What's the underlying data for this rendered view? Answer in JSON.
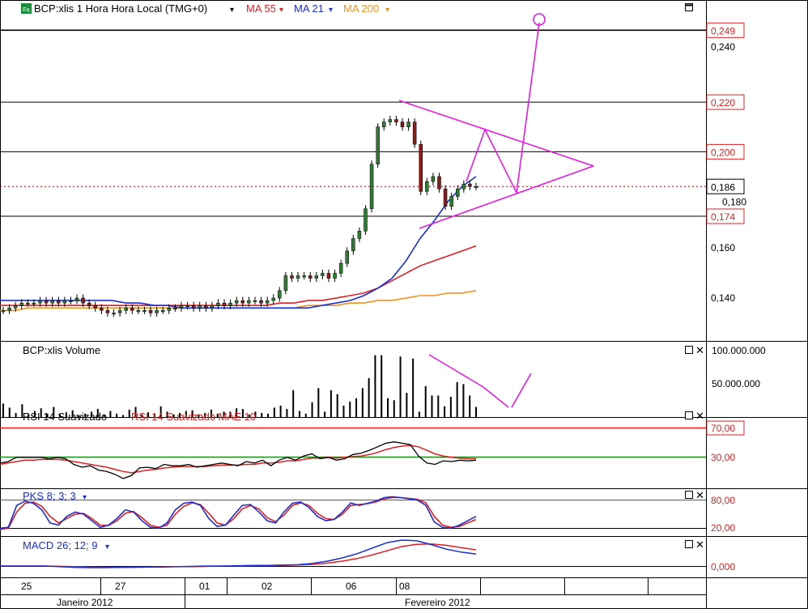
{
  "header": {
    "icon_label": "Eq",
    "symbol_title": "BCP:xlis 1 Hora Hora Local (TMG+0)",
    "ma55_label": "MA 55",
    "ma21_label": "MA 21",
    "ma200_label": "MA 200"
  },
  "panels": {
    "volume_title": "BCP:xlis Volume",
    "rsi_title": "RSI 14 Suavizado",
    "rsi_ma_title": "RSI 14 Suavizado MAE 10",
    "pks_title": "PKS 8; 3; 3",
    "macd_title": "MACD 26; 12; 9"
  },
  "x_axis": {
    "day_labels": [
      "25",
      "27",
      "01",
      "02",
      "06",
      "08"
    ],
    "month_labels": [
      "Janeiro 2012",
      "Fevereiro 2012"
    ]
  },
  "colors": {
    "candle_up": "#2e7d32",
    "candle_down": "#8b1a1a",
    "ma21": "#1a2fd6",
    "ma55": "#e02020",
    "ma200": "#f0921e",
    "drawing": "#e61be6",
    "rsi": "#000000",
    "rsi_ma": "#e02020",
    "overbought_line": "#e02020",
    "oversold_line": "#1a8a1a",
    "pk_k": "#1a2fd6",
    "pk_d": "#e02020",
    "value_box_red": "#e02020"
  },
  "chart_data": [
    {
      "type": "candlestick",
      "title": "BCP:xlis 1 Hora Hora Local (TMG+0)",
      "ylim": [
        0.126,
        0.254
      ],
      "y_ticks": [
        "0,240",
        "0,160",
        "0,140"
      ],
      "price_levels": [
        {
          "value": 0.249,
          "label": "0,249"
        },
        {
          "value": 0.22,
          "label": "0,220"
        },
        {
          "value": 0.2,
          "label": "0,200"
        },
        {
          "value": 0.174,
          "label": "0,174"
        }
      ],
      "last_price": {
        "value": 0.186,
        "label": "0,186"
      },
      "inline_tick": {
        "value": 0.18,
        "label": "0,180"
      },
      "close": [
        0.136,
        0.137,
        0.138,
        0.139,
        0.139,
        0.139,
        0.14,
        0.139,
        0.14,
        0.139,
        0.14,
        0.14,
        0.141,
        0.139,
        0.138,
        0.137,
        0.136,
        0.135,
        0.135,
        0.136,
        0.137,
        0.136,
        0.136,
        0.136,
        0.135,
        0.136,
        0.136,
        0.137,
        0.137,
        0.138,
        0.138,
        0.137,
        0.138,
        0.137,
        0.138,
        0.139,
        0.138,
        0.139,
        0.14,
        0.139,
        0.14,
        0.14,
        0.139,
        0.14,
        0.141,
        0.144,
        0.15,
        0.149,
        0.15,
        0.15,
        0.149,
        0.15,
        0.151,
        0.149,
        0.151,
        0.155,
        0.16,
        0.165,
        0.168,
        0.177,
        0.195,
        0.21,
        0.212,
        0.213,
        0.212,
        0.21,
        0.212,
        0.203,
        0.184,
        0.188,
        0.19,
        0.185,
        0.178,
        0.182,
        0.185,
        0.187,
        0.186,
        0.186
      ],
      "ma21": [
        0.14,
        0.14,
        0.14,
        0.14,
        0.14,
        0.14,
        0.14,
        0.14,
        0.14,
        0.139,
        0.139,
        0.138,
        0.138,
        0.137,
        0.137,
        0.137,
        0.137,
        0.137,
        0.137,
        0.137,
        0.137,
        0.137,
        0.137,
        0.138,
        0.139,
        0.14,
        0.142,
        0.145,
        0.149,
        0.156,
        0.165,
        0.172,
        0.18,
        0.186,
        0.19
      ],
      "ma55": [
        0.138,
        0.138,
        0.138,
        0.138,
        0.138,
        0.138,
        0.138,
        0.138,
        0.138,
        0.138,
        0.138,
        0.138,
        0.138,
        0.138,
        0.138,
        0.138,
        0.138,
        0.138,
        0.138,
        0.138,
        0.139,
        0.139,
        0.14,
        0.14,
        0.141,
        0.142,
        0.143,
        0.145,
        0.148,
        0.151,
        0.154,
        0.156,
        0.158,
        0.16,
        0.162
      ],
      "ma200": [
        0.136,
        0.136,
        0.137,
        0.137,
        0.137,
        0.137,
        0.137,
        0.137,
        0.137,
        0.137,
        0.137,
        0.137,
        0.137,
        0.137,
        0.137,
        0.137,
        0.137,
        0.137,
        0.137,
        0.137,
        0.137,
        0.137,
        0.138,
        0.138,
        0.138,
        0.139,
        0.139,
        0.14,
        0.14,
        0.141,
        0.142,
        0.142,
        0.143,
        0.143,
        0.144
      ]
    },
    {
      "type": "bar",
      "title": "BCP:xlis Volume",
      "ylim": [
        0,
        100000000
      ],
      "y_ticks": [
        "100.000.000",
        "50.000.000"
      ],
      "values": [
        20000000,
        14000000,
        6000000,
        19000000,
        4000000,
        9000000,
        13000000,
        5000000,
        15000000,
        4000000,
        7000000,
        10000000,
        3000000,
        5000000,
        8000000,
        12000000,
        4000000,
        9000000,
        5000000,
        3000000,
        11000000,
        15000000,
        4000000,
        7000000,
        5000000,
        16000000,
        8000000,
        4000000,
        6000000,
        9000000,
        10000000,
        4000000,
        6000000,
        11000000,
        5000000,
        8000000,
        8000000,
        13000000,
        12000000,
        4000000,
        8000000,
        6000000,
        5000000,
        14000000,
        17000000,
        12000000,
        40000000,
        9000000,
        5000000,
        22000000,
        43000000,
        8000000,
        40000000,
        34000000,
        17000000,
        23000000,
        28000000,
        43000000,
        58000000,
        92000000,
        92000000,
        28000000,
        25000000,
        90000000,
        36000000,
        87000000,
        8000000,
        46000000,
        32000000,
        32000000,
        16000000,
        30000000,
        52000000,
        49000000,
        32000000,
        15000000
      ],
      "trend_line": [
        88000000,
        52000000
      ],
      "projection_down": [
        0,
        3000000
      ],
      "projection_up": [
        3000000,
        62000000
      ]
    },
    {
      "type": "line",
      "title": "RSI 14 Suavizado",
      "ylim": [
        0,
        100
      ],
      "y_ticks": [
        "70,00",
        "30,00"
      ],
      "levels": [
        70,
        30
      ],
      "series": [
        {
          "name": "RSI 14 Suavizado",
          "values": [
            52,
            54,
            60,
            60,
            60,
            60,
            58,
            60,
            58,
            50,
            46,
            48,
            42,
            40,
            36,
            30,
            34,
            45,
            46,
            44,
            50,
            48,
            48,
            50,
            46,
            48,
            50,
            52,
            50,
            48,
            54,
            52,
            56,
            48,
            56,
            60,
            56,
            62,
            65,
            58,
            60,
            56,
            58,
            64,
            66,
            70,
            75,
            80,
            82,
            80,
            78,
            62,
            52,
            50,
            55,
            54,
            56,
            55,
            56
          ]
        },
        {
          "name": "RSI 14 Suavizado MAE 10",
          "values": [
            50,
            52,
            54,
            56,
            56,
            57,
            57,
            57,
            56,
            54,
            52,
            50,
            48,
            46,
            43,
            40,
            38,
            40,
            42,
            43,
            45,
            46,
            47,
            47,
            47,
            47,
            48,
            49,
            49,
            49,
            50,
            50,
            52,
            52,
            53,
            55,
            55,
            57,
            59,
            59,
            60,
            59,
            60,
            61,
            62,
            64,
            67,
            71,
            74,
            76,
            77,
            75,
            70,
            65,
            62,
            60,
            59,
            58,
            58
          ]
        }
      ]
    },
    {
      "type": "line",
      "title": "PKS 8; 3; 3",
      "ylim": [
        0,
        100
      ],
      "y_ticks": [
        "80,00",
        "20,00"
      ],
      "levels": [
        80,
        20
      ],
      "series": [
        {
          "name": "%K",
          "values": [
            18,
            20,
            70,
            80,
            75,
            60,
            30,
            25,
            45,
            55,
            50,
            35,
            20,
            25,
            40,
            60,
            55,
            35,
            20,
            18,
            30,
            60,
            75,
            78,
            70,
            40,
            22,
            25,
            48,
            70,
            72,
            55,
            35,
            30,
            55,
            75,
            78,
            65,
            45,
            35,
            38,
            55,
            76,
            70,
            75,
            80,
            88,
            90,
            88,
            85,
            82,
            70,
            32,
            20,
            18,
            25,
            35,
            45
          ]
        },
        {
          "name": "%D",
          "values": [
            15,
            18,
            55,
            75,
            78,
            68,
            45,
            30,
            40,
            50,
            52,
            40,
            25,
            24,
            35,
            52,
            56,
            42,
            25,
            20,
            25,
            50,
            68,
            76,
            72,
            52,
            30,
            25,
            40,
            62,
            70,
            62,
            42,
            33,
            48,
            70,
            76,
            70,
            52,
            40,
            38,
            50,
            70,
            72,
            74,
            78,
            85,
            88,
            88,
            86,
            84,
            76,
            45,
            25,
            20,
            22,
            30,
            38
          ]
        }
      ]
    },
    {
      "type": "line",
      "title": "MACD 26; 12; 9",
      "y_ticks": [
        "0,000"
      ],
      "series": [
        {
          "name": "MACD",
          "values": [
            0.0,
            0.0,
            0.0,
            0.0,
            -0.0002,
            -0.0004,
            -0.0005,
            -0.0005,
            -0.0004,
            -0.0003,
            -0.0003,
            -0.0002,
            -0.0002,
            -0.0001,
            0.0,
            0.0,
            0.0001,
            0.0002,
            0.0002,
            0.0003,
            0.0004,
            0.0008,
            0.0015,
            0.0025,
            0.0038,
            0.0055,
            0.0072,
            0.008,
            0.0078,
            0.0066,
            0.0052,
            0.0043,
            0.0037
          ]
        },
        {
          "name": "Sinal",
          "values": [
            0.0,
            0.0,
            0.0,
            0.0,
            -0.0001,
            -0.0002,
            -0.0003,
            -0.0004,
            -0.0004,
            -0.0004,
            -0.0003,
            -0.0003,
            -0.0002,
            -0.0002,
            -0.0001,
            0.0,
            0.0,
            0.0001,
            0.0001,
            0.0002,
            0.0003,
            0.0005,
            0.0009,
            0.0015,
            0.0023,
            0.0034,
            0.0047,
            0.006,
            0.0067,
            0.0068,
            0.0064,
            0.0057,
            0.005
          ]
        }
      ]
    }
  ]
}
